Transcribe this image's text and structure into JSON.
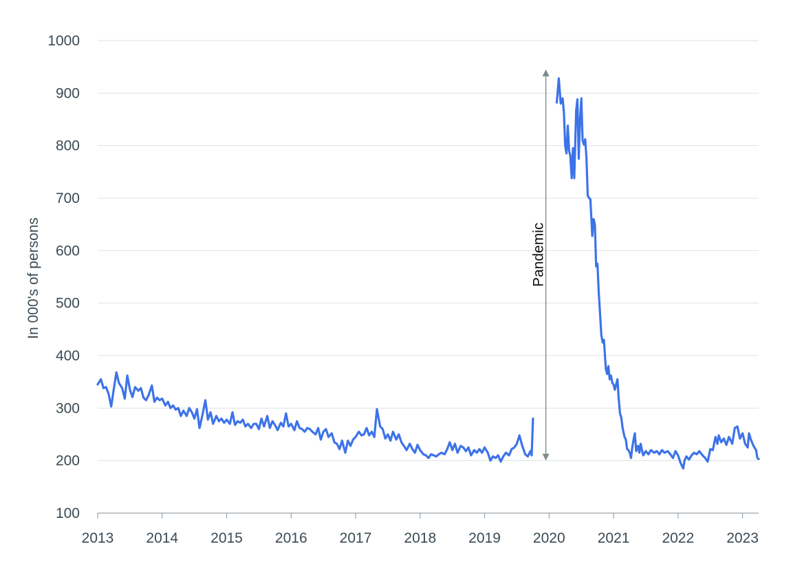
{
  "chart_data": {
    "type": "line",
    "title": "",
    "xlabel": "",
    "ylabel": "In 000's of persons",
    "xlim": [
      2013,
      2023.25
    ],
    "ylim": [
      100,
      1000
    ],
    "x_ticks": [
      2013,
      2014,
      2015,
      2016,
      2017,
      2018,
      2019,
      2020,
      2021,
      2022,
      2023
    ],
    "x_tick_labels": [
      "2013",
      "2014",
      "2015",
      "2016",
      "2017",
      "2018",
      "2019",
      "2020",
      "2021",
      "2022",
      "2023"
    ],
    "y_ticks": [
      100,
      200,
      300,
      400,
      500,
      600,
      700,
      800,
      900,
      1000
    ],
    "y_tick_labels": [
      "100",
      "200",
      "300",
      "400",
      "500",
      "600",
      "700",
      "800",
      "900",
      "1000"
    ],
    "grid": "horizontal",
    "colors": {
      "series": "#3d73e8",
      "grid": "#dde3e7",
      "axis": "#9aa5ab",
      "annotation_arrow": "#7d8b90"
    },
    "annotations": [
      {
        "text": "Pandemic",
        "x": 2019.95,
        "y_range": [
          200,
          945
        ],
        "style": "double-arrow-vertical"
      }
    ],
    "series": [
      {
        "points": [
          [
            2013.0,
            345
          ],
          [
            2013.05,
            355
          ],
          [
            2013.09,
            338
          ],
          [
            2013.13,
            340
          ],
          [
            2013.17,
            327
          ],
          [
            2013.21,
            303
          ],
          [
            2013.25,
            336
          ],
          [
            2013.29,
            368
          ],
          [
            2013.33,
            348
          ],
          [
            2013.38,
            338
          ],
          [
            2013.42,
            318
          ],
          [
            2013.46,
            362
          ],
          [
            2013.5,
            335
          ],
          [
            2013.54,
            321
          ],
          [
            2013.58,
            340
          ],
          [
            2013.63,
            333
          ],
          [
            2013.67,
            338
          ],
          [
            2013.71,
            320
          ],
          [
            2013.75,
            315
          ],
          [
            2013.79,
            325
          ],
          [
            2013.84,
            343
          ],
          [
            2013.88,
            312
          ],
          [
            2013.92,
            320
          ],
          [
            2013.96,
            315
          ],
          [
            2014.0,
            318
          ],
          [
            2014.05,
            305
          ],
          [
            2014.09,
            312
          ],
          [
            2014.13,
            300
          ],
          [
            2014.17,
            305
          ],
          [
            2014.21,
            297
          ],
          [
            2014.25,
            300
          ],
          [
            2014.29,
            285
          ],
          [
            2014.33,
            295
          ],
          [
            2014.38,
            285
          ],
          [
            2014.42,
            300
          ],
          [
            2014.46,
            292
          ],
          [
            2014.5,
            280
          ],
          [
            2014.54,
            298
          ],
          [
            2014.58,
            262
          ],
          [
            2014.63,
            290
          ],
          [
            2014.67,
            315
          ],
          [
            2014.71,
            278
          ],
          [
            2014.75,
            292
          ],
          [
            2014.79,
            270
          ],
          [
            2014.84,
            285
          ],
          [
            2014.88,
            275
          ],
          [
            2014.92,
            280
          ],
          [
            2014.96,
            272
          ],
          [
            2015.0,
            278
          ],
          [
            2015.05,
            270
          ],
          [
            2015.09,
            292
          ],
          [
            2015.13,
            268
          ],
          [
            2015.17,
            275
          ],
          [
            2015.21,
            272
          ],
          [
            2015.25,
            278
          ],
          [
            2015.29,
            265
          ],
          [
            2015.33,
            270
          ],
          [
            2015.38,
            262
          ],
          [
            2015.42,
            270
          ],
          [
            2015.46,
            270
          ],
          [
            2015.5,
            260
          ],
          [
            2015.54,
            280
          ],
          [
            2015.58,
            265
          ],
          [
            2015.63,
            285
          ],
          [
            2015.67,
            262
          ],
          [
            2015.71,
            275
          ],
          [
            2015.75,
            268
          ],
          [
            2015.79,
            258
          ],
          [
            2015.84,
            272
          ],
          [
            2015.88,
            265
          ],
          [
            2015.92,
            290
          ],
          [
            2015.96,
            265
          ],
          [
            2016.0,
            270
          ],
          [
            2016.05,
            258
          ],
          [
            2016.09,
            275
          ],
          [
            2016.13,
            262
          ],
          [
            2016.17,
            260
          ],
          [
            2016.21,
            255
          ],
          [
            2016.25,
            262
          ],
          [
            2016.29,
            260
          ],
          [
            2016.33,
            255
          ],
          [
            2016.38,
            250
          ],
          [
            2016.42,
            262
          ],
          [
            2016.46,
            240
          ],
          [
            2016.5,
            255
          ],
          [
            2016.54,
            260
          ],
          [
            2016.58,
            245
          ],
          [
            2016.63,
            252
          ],
          [
            2016.67,
            235
          ],
          [
            2016.71,
            232
          ],
          [
            2016.75,
            222
          ],
          [
            2016.79,
            238
          ],
          [
            2016.84,
            215
          ],
          [
            2016.88,
            238
          ],
          [
            2016.92,
            228
          ],
          [
            2016.96,
            240
          ],
          [
            2017.0,
            245
          ],
          [
            2017.05,
            255
          ],
          [
            2017.09,
            248
          ],
          [
            2017.13,
            250
          ],
          [
            2017.17,
            262
          ],
          [
            2017.21,
            248
          ],
          [
            2017.25,
            255
          ],
          [
            2017.29,
            245
          ],
          [
            2017.33,
            298
          ],
          [
            2017.38,
            265
          ],
          [
            2017.42,
            260
          ],
          [
            2017.46,
            242
          ],
          [
            2017.5,
            250
          ],
          [
            2017.54,
            238
          ],
          [
            2017.58,
            255
          ],
          [
            2017.63,
            240
          ],
          [
            2017.67,
            250
          ],
          [
            2017.71,
            235
          ],
          [
            2017.75,
            228
          ],
          [
            2017.79,
            220
          ],
          [
            2017.84,
            232
          ],
          [
            2017.88,
            222
          ],
          [
            2017.92,
            215
          ],
          [
            2017.96,
            230
          ],
          [
            2018.0,
            220
          ],
          [
            2018.05,
            212
          ],
          [
            2018.09,
            210
          ],
          [
            2018.13,
            205
          ],
          [
            2018.17,
            212
          ],
          [
            2018.21,
            210
          ],
          [
            2018.25,
            208
          ],
          [
            2018.29,
            212
          ],
          [
            2018.33,
            215
          ],
          [
            2018.38,
            212
          ],
          [
            2018.42,
            222
          ],
          [
            2018.46,
            235
          ],
          [
            2018.5,
            220
          ],
          [
            2018.54,
            232
          ],
          [
            2018.58,
            215
          ],
          [
            2018.63,
            228
          ],
          [
            2018.67,
            225
          ],
          [
            2018.71,
            218
          ],
          [
            2018.75,
            225
          ],
          [
            2018.79,
            210
          ],
          [
            2018.84,
            220
          ],
          [
            2018.88,
            215
          ],
          [
            2018.92,
            222
          ],
          [
            2018.96,
            215
          ],
          [
            2019.0,
            225
          ],
          [
            2019.05,
            215
          ],
          [
            2019.09,
            200
          ],
          [
            2019.13,
            208
          ],
          [
            2019.17,
            205
          ],
          [
            2019.21,
            210
          ],
          [
            2019.25,
            198
          ],
          [
            2019.29,
            208
          ],
          [
            2019.33,
            215
          ],
          [
            2019.38,
            210
          ],
          [
            2019.42,
            222
          ],
          [
            2019.46,
            225
          ],
          [
            2019.5,
            232
          ],
          [
            2019.54,
            248
          ],
          [
            2019.58,
            230
          ],
          [
            2019.63,
            212
          ],
          [
            2019.67,
            208
          ],
          [
            2019.71,
            218
          ],
          [
            2019.73,
            210
          ],
          [
            2019.75,
            280
          ]
        ]
      },
      {
        "points": [
          [
            2020.12,
            882
          ],
          [
            2020.15,
            928
          ],
          [
            2020.18,
            880
          ],
          [
            2020.21,
            890
          ],
          [
            2020.23,
            862
          ],
          [
            2020.25,
            800
          ],
          [
            2020.27,
            785
          ],
          [
            2020.29,
            838
          ],
          [
            2020.31,
            790
          ],
          [
            2020.33,
            780
          ],
          [
            2020.35,
            738
          ],
          [
            2020.37,
            795
          ],
          [
            2020.39,
            738
          ],
          [
            2020.42,
            868
          ],
          [
            2020.44,
            888
          ],
          [
            2020.46,
            775
          ],
          [
            2020.48,
            850
          ],
          [
            2020.5,
            890
          ],
          [
            2020.52,
            810
          ],
          [
            2020.54,
            802
          ],
          [
            2020.56,
            812
          ],
          [
            2020.58,
            775
          ],
          [
            2020.6,
            705
          ],
          [
            2020.62,
            700
          ],
          [
            2020.64,
            698
          ],
          [
            2020.67,
            628
          ],
          [
            2020.69,
            660
          ],
          [
            2020.71,
            650
          ],
          [
            2020.73,
            570
          ],
          [
            2020.75,
            575
          ],
          [
            2020.77,
            520
          ],
          [
            2020.79,
            480
          ],
          [
            2020.81,
            440
          ],
          [
            2020.83,
            425
          ],
          [
            2020.85,
            430
          ],
          [
            2020.88,
            375
          ],
          [
            2020.9,
            365
          ],
          [
            2020.92,
            380
          ],
          [
            2020.94,
            355
          ],
          [
            2020.96,
            362
          ],
          [
            2020.98,
            348
          ],
          [
            2021.0,
            345
          ],
          [
            2021.02,
            335
          ],
          [
            2021.04,
            345
          ],
          [
            2021.06,
            355
          ],
          [
            2021.08,
            318
          ],
          [
            2021.1,
            290
          ],
          [
            2021.12,
            282
          ],
          [
            2021.14,
            262
          ],
          [
            2021.17,
            245
          ],
          [
            2021.19,
            240
          ],
          [
            2021.21,
            222
          ],
          [
            2021.23,
            220
          ],
          [
            2021.25,
            215
          ],
          [
            2021.27,
            205
          ],
          [
            2021.29,
            225
          ],
          [
            2021.31,
            240
          ],
          [
            2021.33,
            252
          ],
          [
            2021.35,
            218
          ],
          [
            2021.38,
            228
          ],
          [
            2021.4,
            215
          ],
          [
            2021.42,
            232
          ],
          [
            2021.44,
            220
          ],
          [
            2021.46,
            210
          ],
          [
            2021.5,
            218
          ],
          [
            2021.54,
            212
          ],
          [
            2021.58,
            220
          ],
          [
            2021.63,
            215
          ],
          [
            2021.67,
            218
          ],
          [
            2021.71,
            212
          ],
          [
            2021.75,
            220
          ],
          [
            2021.79,
            215
          ],
          [
            2021.84,
            218
          ],
          [
            2021.88,
            212
          ],
          [
            2021.92,
            205
          ],
          [
            2021.96,
            218
          ],
          [
            2022.0,
            210
          ],
          [
            2022.04,
            195
          ],
          [
            2022.08,
            185
          ],
          [
            2022.1,
            200
          ],
          [
            2022.13,
            208
          ],
          [
            2022.17,
            202
          ],
          [
            2022.21,
            210
          ],
          [
            2022.25,
            215
          ],
          [
            2022.29,
            212
          ],
          [
            2022.33,
            218
          ],
          [
            2022.38,
            210
          ],
          [
            2022.42,
            205
          ],
          [
            2022.46,
            198
          ],
          [
            2022.5,
            222
          ],
          [
            2022.54,
            220
          ],
          [
            2022.58,
            245
          ],
          [
            2022.61,
            232
          ],
          [
            2022.63,
            248
          ],
          [
            2022.67,
            235
          ],
          [
            2022.71,
            242
          ],
          [
            2022.75,
            230
          ],
          [
            2022.79,
            245
          ],
          [
            2022.84,
            232
          ],
          [
            2022.88,
            262
          ],
          [
            2022.92,
            265
          ],
          [
            2022.96,
            242
          ],
          [
            2023.0,
            252
          ],
          [
            2023.04,
            232
          ],
          [
            2023.08,
            225
          ],
          [
            2023.1,
            252
          ],
          [
            2023.13,
            240
          ],
          [
            2023.17,
            228
          ],
          [
            2023.21,
            220
          ],
          [
            2023.23,
            205
          ],
          [
            2023.25,
            203
          ]
        ]
      }
    ]
  }
}
